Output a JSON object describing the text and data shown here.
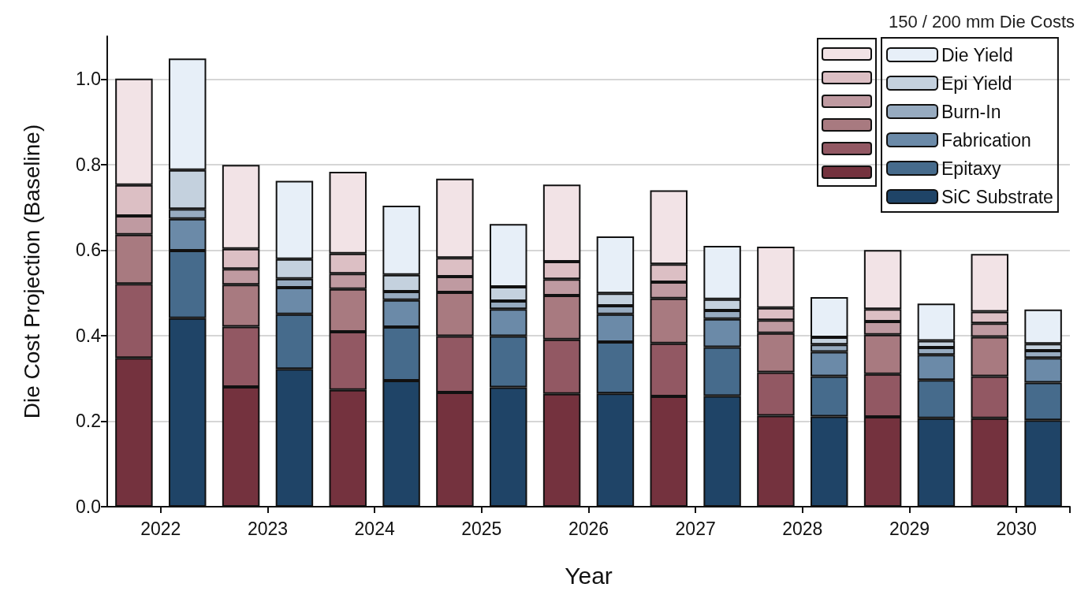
{
  "chart_data": {
    "type": "bar",
    "stacked": true,
    "xlabel": "Year",
    "ylabel": "Die Cost Projection (Baseline)",
    "legend_title": "150 / 200 mm Die Costs",
    "categories": [
      "2022",
      null,
      "2023",
      null,
      "2024",
      null,
      "2025",
      null,
      "2026",
      null,
      "2027",
      null,
      "2028",
      null,
      "2029",
      null,
      "2030",
      null
    ],
    "ylim": [
      0,
      1.1
    ],
    "yticks": [
      {
        "value": 0,
        "label": "0.0"
      },
      {
        "value": 0.2,
        "label": "0.2"
      },
      {
        "value": 0.4,
        "label": "0.4"
      },
      {
        "value": 0.6,
        "label": "0.6"
      },
      {
        "value": 0.8,
        "label": "0.8"
      },
      {
        "value": 1,
        "label": "1.0"
      }
    ],
    "grid": "y",
    "legend": "top right",
    "series": [
      {
        "color": "#74323e",
        "values": [
          0.348,
          null,
          0.28,
          null,
          0.273,
          null,
          0.267,
          null,
          0.264,
          null,
          0.258,
          null,
          0.213,
          null,
          0.21,
          null,
          0.207,
          null
        ]
      },
      {
        "color": "#925863",
        "values": [
          0.173,
          null,
          0.141,
          null,
          0.136,
          null,
          0.132,
          null,
          0.127,
          null,
          0.124,
          null,
          0.101,
          null,
          0.1,
          null,
          0.098,
          null
        ]
      },
      {
        "color": "#a87a80",
        "values": [
          0.115,
          null,
          0.098,
          null,
          0.1,
          null,
          0.102,
          null,
          0.103,
          null,
          0.105,
          null,
          0.092,
          null,
          0.092,
          null,
          0.092,
          null
        ]
      },
      {
        "color": "#bf9aa1",
        "values": [
          0.044,
          null,
          0.037,
          null,
          0.036,
          null,
          0.037,
          null,
          0.038,
          null,
          0.038,
          null,
          0.03,
          null,
          0.031,
          null,
          0.032,
          null
        ]
      },
      {
        "color": "#dcbfc4",
        "values": [
          0.072,
          null,
          0.047,
          null,
          0.047,
          null,
          0.044,
          null,
          0.041,
          null,
          0.042,
          null,
          0.029,
          null,
          0.029,
          null,
          0.027,
          null
        ]
      },
      {
        "color": "#f2e3e6",
        "values": [
          0.249,
          null,
          0.196,
          null,
          0.191,
          null,
          0.185,
          null,
          0.18,
          null,
          0.173,
          null,
          0.143,
          null,
          0.138,
          null,
          0.135,
          null
        ]
      },
      {
        "name": "SiC Substrate",
        "color": "#1f4467",
        "values": [
          null,
          0.441,
          null,
          0.322,
          null,
          0.295,
          null,
          0.279,
          null,
          0.265,
          null,
          0.259,
          null,
          0.211,
          null,
          0.207,
          null,
          0.202
        ]
      },
      {
        "name": "Epitaxy",
        "color": "#466b8c",
        "values": [
          null,
          0.158,
          null,
          0.128,
          null,
          0.125,
          null,
          0.12,
          null,
          0.12,
          null,
          0.114,
          null,
          0.094,
          null,
          0.089,
          null,
          0.088
        ]
      },
      {
        "name": "Fabrication",
        "color": "#6b8aa8",
        "values": [
          null,
          0.074,
          null,
          0.062,
          null,
          0.063,
          null,
          0.063,
          null,
          0.065,
          null,
          0.066,
          null,
          0.057,
          null,
          0.059,
          null,
          0.058
        ]
      },
      {
        "name": "Burn-In",
        "color": "#97abc0",
        "values": [
          null,
          0.023,
          null,
          0.021,
          null,
          0.02,
          null,
          0.019,
          null,
          0.02,
          null,
          0.02,
          null,
          0.017,
          null,
          0.017,
          null,
          0.017
        ]
      },
      {
        "name": "Epi Yield",
        "color": "#c4d1de",
        "values": [
          null,
          0.091,
          null,
          0.046,
          null,
          0.039,
          null,
          0.033,
          null,
          0.029,
          null,
          0.026,
          null,
          0.017,
          null,
          0.016,
          null,
          0.016
        ]
      },
      {
        "name": "Die Yield",
        "color": "#e7eff8",
        "values": [
          null,
          0.261,
          null,
          0.183,
          null,
          0.162,
          null,
          0.147,
          null,
          0.133,
          null,
          0.125,
          null,
          0.094,
          null,
          0.087,
          null,
          0.08
        ]
      }
    ]
  }
}
